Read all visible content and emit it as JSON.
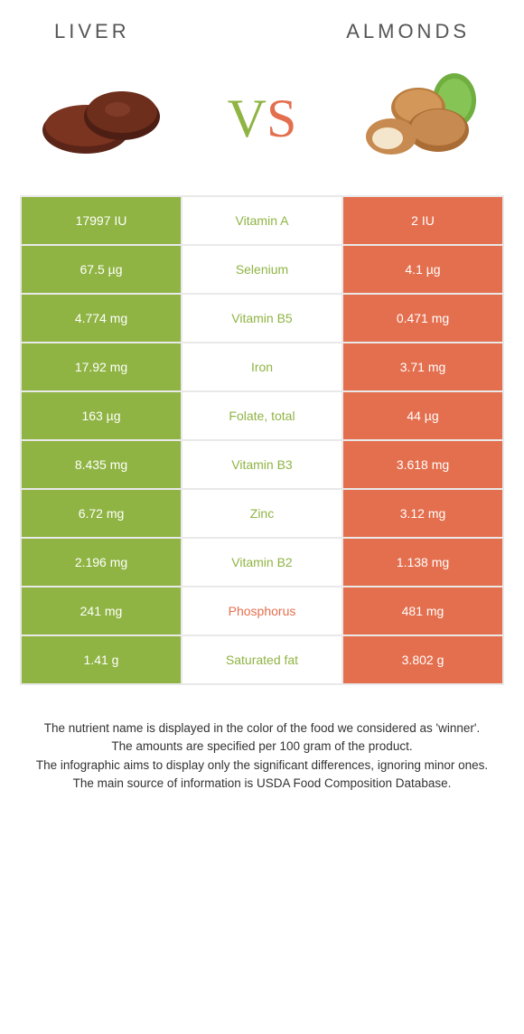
{
  "colors": {
    "left": "#8fb443",
    "right": "#e46f4e",
    "border": "#e9e9e9",
    "text": "#333333",
    "white": "#ffffff",
    "header": "#555555"
  },
  "header": {
    "left_title": "Liver",
    "right_title": "Almonds"
  },
  "vs": {
    "v": "V",
    "s": "S"
  },
  "rows": [
    {
      "nutrient": "Vitamin A",
      "left": "17997 IU",
      "right": "2 IU",
      "winner": "left"
    },
    {
      "nutrient": "Selenium",
      "left": "67.5 µg",
      "right": "4.1 µg",
      "winner": "left"
    },
    {
      "nutrient": "Vitamin B5",
      "left": "4.774 mg",
      "right": "0.471 mg",
      "winner": "left"
    },
    {
      "nutrient": "Iron",
      "left": "17.92 mg",
      "right": "3.71 mg",
      "winner": "left"
    },
    {
      "nutrient": "Folate, total",
      "left": "163 µg",
      "right": "44 µg",
      "winner": "left"
    },
    {
      "nutrient": "Vitamin B3",
      "left": "8.435 mg",
      "right": "3.618 mg",
      "winner": "left"
    },
    {
      "nutrient": "Zinc",
      "left": "6.72 mg",
      "right": "3.12 mg",
      "winner": "left"
    },
    {
      "nutrient": "Vitamin B2",
      "left": "2.196 mg",
      "right": "1.138 mg",
      "winner": "left"
    },
    {
      "nutrient": "Phosphorus",
      "left": "241 mg",
      "right": "481 mg",
      "winner": "right"
    },
    {
      "nutrient": "Saturated fat",
      "left": "1.41 g",
      "right": "3.802 g",
      "winner": "left"
    }
  ],
  "footer": {
    "line1": "The nutrient name is displayed in the color of the food we considered as 'winner'.",
    "line2": "The amounts are specified per 100 gram of the product.",
    "line3": "The infographic aims to display only the significant differences, ignoring minor ones.",
    "line4": "The main source of information is USDA Food Composition Database."
  }
}
